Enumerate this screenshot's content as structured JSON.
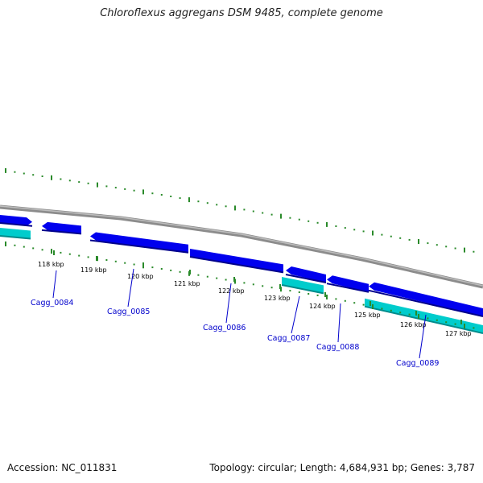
{
  "title": "Chloroflexus aggregans DSM 9485, complete genome",
  "footer": {
    "accession": "Accession: NC_011831",
    "summary": "Topology: circular; Length: 4,684,931 bp; Genes: 3,787"
  },
  "ticks": [
    "118 kbp",
    "119 kbp",
    "120 kbp",
    "121 kbp",
    "122 kbp",
    "123 kbp",
    "124 kbp",
    "125 kbp",
    "126 kbp",
    "127 kbp"
  ],
  "genes": [
    "Cagg_0084",
    "Cagg_0085",
    "Cagg_0086",
    "Cagg_0087",
    "Cagg_0088",
    "Cagg_0089"
  ],
  "colors": {
    "cds": "#0000ee",
    "cds_light": "#6a6aff",
    "rna": "#00cccc",
    "rna_dark": "#008b8b",
    "backbone": "#8c8c8c",
    "skew": "#2a8a2a",
    "label": "#0000cc"
  }
}
